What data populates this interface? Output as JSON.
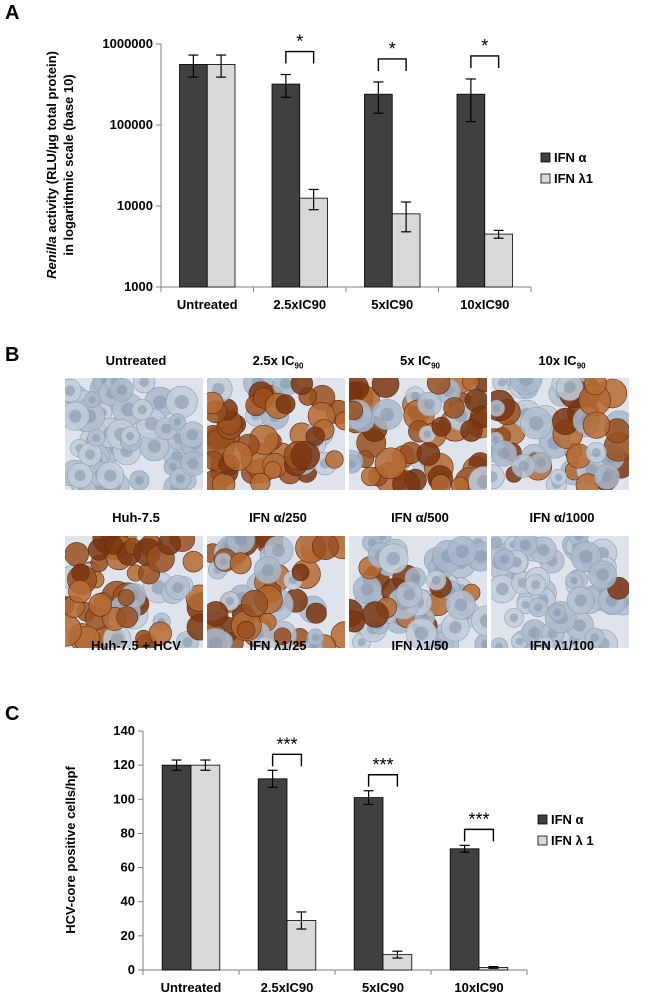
{
  "panels": {
    "a": "A",
    "b": "B",
    "c": "C"
  },
  "colors": {
    "ifn_alpha": "#404040",
    "ifn_lambda": "#d9d9d9",
    "untreated_cells": "#9fb1c6",
    "stained_cells": "#8a4418"
  },
  "chart_data": [
    {
      "type": "bar",
      "panel": "A",
      "scale": "log10",
      "ylabel_italic": "Renilla",
      "ylabel_rest": " activity (RLU/µg total protein)",
      "ylabel_line2": "in logarithmic scale (base 10)",
      "categories": [
        "Untreated",
        "2.5xIC90",
        "5xIC90",
        "10xIC90"
      ],
      "ylim": [
        1000,
        1000000
      ],
      "yticks": [
        "1000000",
        "100000",
        "10000",
        "1000"
      ],
      "ytick_values": [
        1000000,
        100000,
        10000,
        1000
      ],
      "legend_position": "right",
      "series": [
        {
          "name": "IFN α",
          "values": [
            560000,
            320000,
            240000,
            240000
          ],
          "errors": [
            170000,
            100000,
            100000,
            130000
          ]
        },
        {
          "name": "IFN λ1",
          "values": [
            560000,
            12500,
            8000,
            4500
          ],
          "errors": [
            170000,
            3500,
            3200,
            500
          ]
        }
      ],
      "significance": [
        {
          "category": "2.5xIC90",
          "label": "*"
        },
        {
          "category": "5xIC90",
          "label": "*"
        },
        {
          "category": "10xIC90",
          "label": "*"
        }
      ]
    },
    {
      "type": "bar",
      "panel": "C",
      "ylabel": "HCV-core positive cells/hpf",
      "categories": [
        "Untreated",
        "2.5xIC90",
        "5xIC90",
        "10xIC90"
      ],
      "ylim": [
        0,
        140
      ],
      "yticks": [
        "0",
        "20",
        "40",
        "60",
        "80",
        "100",
        "120",
        "140"
      ],
      "ytick_values": [
        0,
        20,
        40,
        60,
        80,
        100,
        120,
        140
      ],
      "legend_position": "right",
      "series": [
        {
          "name": "IFN α",
          "values": [
            120,
            112,
            101,
            71
          ],
          "errors": [
            3,
            5,
            4,
            2
          ]
        },
        {
          "name": "IFN λ 1",
          "values": [
            120,
            29,
            9,
            1.5
          ],
          "errors": [
            3,
            5,
            2,
            0.5
          ]
        }
      ],
      "significance": [
        {
          "category": "2.5xIC90",
          "label": "***"
        },
        {
          "category": "5xIC90",
          "label": "***"
        },
        {
          "category": "10xIC90",
          "label": "***"
        }
      ]
    }
  ],
  "micrographs": {
    "top_headers": [
      {
        "text": "Untreated",
        "sub": ""
      },
      {
        "text": "2.5x IC",
        "sub": "90"
      },
      {
        "text": "5x IC",
        "sub": "90"
      },
      {
        "text": "10x IC",
        "sub": "90"
      }
    ],
    "row1_images": [
      {
        "name": "Untreated",
        "density": 0.0
      },
      {
        "name": "2.5x",
        "density": 0.75
      },
      {
        "name": "5x",
        "density": 0.7
      },
      {
        "name": "10x",
        "density": 0.45
      }
    ],
    "middle_labels": [
      "Huh-7.5",
      "IFN α/250",
      "IFN α/500",
      "IFN α/1000"
    ],
    "row2_images": [
      {
        "name": "Huh-7.5 + HCV",
        "density": 0.85
      },
      {
        "name": "IFN λ1/25",
        "density": 0.6
      },
      {
        "name": "IFN λ1/50",
        "density": 0.18
      },
      {
        "name": "IFN λ1/100",
        "density": 0.05
      }
    ],
    "bottom_labels": [
      "Huh-7.5 + HCV",
      "IFN λ1/25",
      "IFN λ1/50",
      "IFN λ1/100"
    ]
  }
}
